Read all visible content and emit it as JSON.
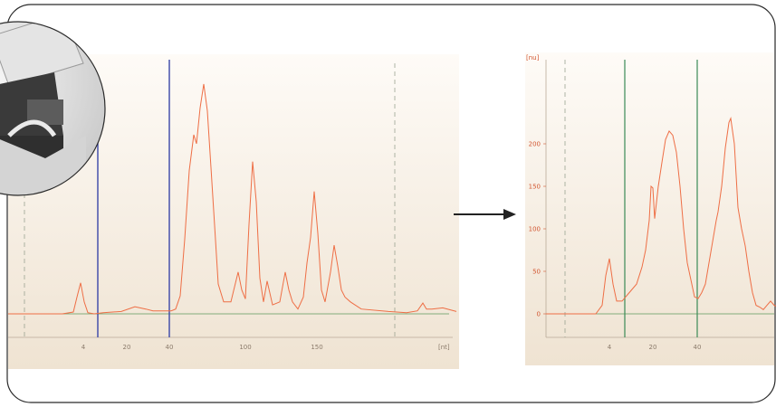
{
  "colors": {
    "trace": "#ee6e45",
    "baseline": "#5c9a5c",
    "left_marker": "#3a46a8",
    "right_marker": "#3a8a56",
    "dashed_marker": "#9aa392",
    "frame": "#2a2a2a"
  },
  "chart_data": [
    {
      "type": "line",
      "title": "",
      "xlabel": "[nt]",
      "ylabel": "",
      "x_tick_labels": [
        "4",
        "20",
        "40",
        "100",
        "150"
      ],
      "y_tick_labels": [],
      "grid": false,
      "series": [
        {
          "values_x": [
            0,
            60,
            72,
            76,
            80,
            84,
            88,
            95,
            105,
            125,
            140,
            152,
            160,
            180,
            185,
            190,
            195,
            200,
            205,
            208,
            212,
            216,
            220,
            224,
            228,
            232,
            238,
            246,
            254,
            258,
            262,
            266,
            270,
            274,
            278,
            282,
            286,
            292,
            300,
            306,
            310,
            314,
            320,
            326,
            330,
            334,
            338,
            342,
            346,
            350,
            356,
            360,
            364,
            368,
            372,
            378,
            390,
            420,
            440,
            452,
            458,
            462,
            468,
            480,
            495
          ],
          "values_y": [
            0,
            0,
            3,
            28,
            52,
            20,
            2,
            0,
            2,
            4,
            12,
            8,
            5,
            5,
            8,
            30,
            125,
            240,
            300,
            285,
            345,
            385,
            340,
            245,
            148,
            50,
            20,
            20,
            70,
            40,
            25,
            150,
            255,
            188,
            60,
            20,
            55,
            15,
            20,
            70,
            40,
            20,
            8,
            28,
            85,
            128,
            205,
            135,
            40,
            20,
            70,
            115,
            80,
            40,
            28,
            20,
            8,
            4,
            2,
            5,
            18,
            8,
            8,
            10,
            4
          ]
        }
      ]
    },
    {
      "type": "line",
      "title": "",
      "xlabel": "",
      "ylabel": "[nu]",
      "ylim": [
        -10,
        250
      ],
      "y_tick_labels": [
        "0",
        "50",
        "100",
        "150",
        "200"
      ],
      "x_tick_labels": [
        "4",
        "20",
        "40"
      ],
      "grid": false,
      "series": [
        {
          "values_x": [
            0,
            55,
            62,
            66,
            70,
            74,
            78,
            84,
            92,
            100,
            106,
            110,
            114,
            116,
            118,
            120,
            124,
            128,
            132,
            136,
            140,
            144,
            148,
            152,
            156,
            160,
            164,
            168,
            172,
            176,
            180,
            184,
            188,
            190,
            194,
            198,
            202,
            204,
            208,
            212,
            216,
            220,
            224,
            228,
            232,
            236,
            240,
            244,
            248,
            252,
            256,
            260,
            264,
            268,
            270,
            272,
            276
          ],
          "values_y": [
            0,
            0,
            10,
            45,
            65,
            35,
            15,
            15,
            25,
            35,
            55,
            75,
            110,
            150,
            148,
            112,
            150,
            178,
            205,
            215,
            210,
            190,
            150,
            100,
            60,
            40,
            20,
            18,
            25,
            35,
            60,
            85,
            110,
            120,
            150,
            195,
            225,
            230,
            200,
            125,
            100,
            80,
            50,
            25,
            10,
            8,
            5,
            10,
            15,
            10,
            8,
            20,
            45,
            30,
            40,
            20,
            18
          ]
        }
      ]
    }
  ]
}
